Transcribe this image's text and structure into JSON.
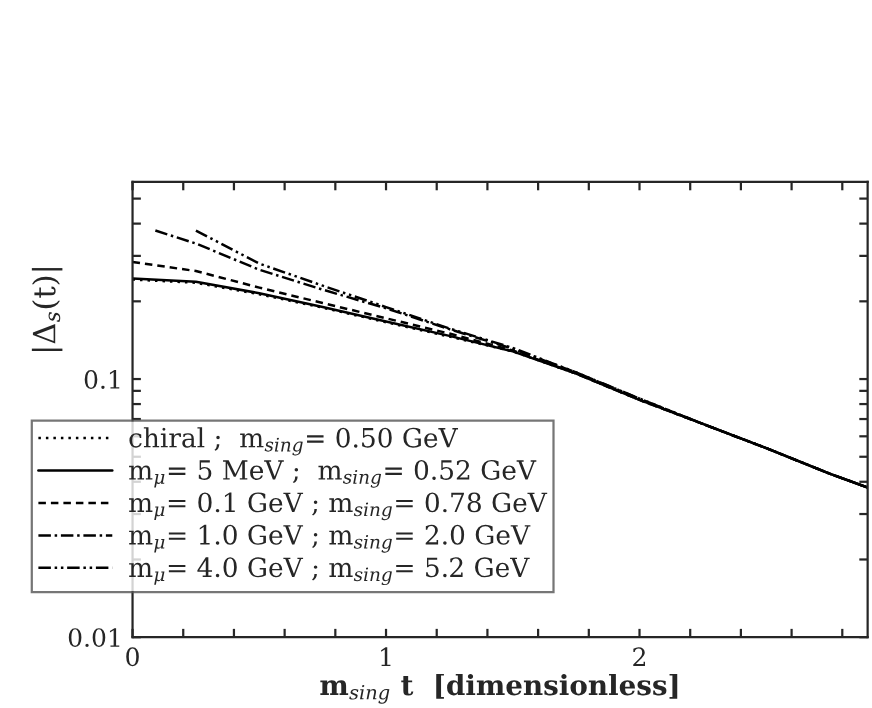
{
  "chart_data": {
    "type": "line",
    "xlabel": "m$_{sing}$ t  [dimensionless]",
    "ylabel": "|Δ$_{s}$(t)|",
    "log": "y",
    "xlim": [
      0,
      2.9
    ],
    "xticks": [
      0,
      {
        "value": 0.2,
        "label": null
      },
      {
        "value": 0.4,
        "label": null
      },
      {
        "value": 0.6,
        "label": null
      },
      {
        "value": 0.8,
        "label": null
      },
      1,
      {
        "value": 1.2,
        "label": null
      },
      {
        "value": 1.4,
        "label": null
      },
      {
        "value": 1.6,
        "label": null
      },
      {
        "value": 1.8,
        "label": null
      },
      2,
      {
        "value": 2.2,
        "label": null
      },
      {
        "value": 2.4,
        "label": null
      },
      {
        "value": 2.6,
        "label": null
      },
      {
        "value": 2.8,
        "label": null
      }
    ],
    "ylim": [
      0.01,
      0.58
    ],
    "yticks": [
      0.01,
      {
        "value": 0.02,
        "label": null
      },
      {
        "value": 0.03,
        "label": null
      },
      {
        "value": 0.04,
        "label": null
      },
      {
        "value": 0.05,
        "label": null
      },
      {
        "value": 0.06,
        "label": null
      },
      {
        "value": 0.07,
        "label": null
      },
      {
        "value": 0.08,
        "label": null
      },
      {
        "value": 0.09,
        "label": null
      },
      0.1,
      {
        "value": 0.2,
        "label": null
      },
      {
        "value": 0.3,
        "label": null
      },
      {
        "value": 0.4,
        "label": null
      },
      {
        "value": 0.5,
        "label": null
      }
    ],
    "grid": false,
    "legend": "bottom left",
    "series": [
      {
        "name": "chiral ;  m$_{sing}$= 0.50 GeV",
        "color": "#000000",
        "line_style": "dotted",
        "x": [
          0,
          0.25,
          0.5,
          0.75,
          1,
          1.25,
          1.5,
          1.75,
          2,
          2.25,
          2.5,
          2.75,
          2.9
        ],
        "values": [
          0.243,
          0.236,
          0.213,
          0.189,
          0.166,
          0.146,
          0.128,
          0.105,
          0.083,
          0.067,
          0.054,
          0.043,
          0.038
        ]
      },
      {
        "name": "m$_{μ}$= 5 MeV ;  m$_{sing}$= 0.52 GeV",
        "color": "#000000",
        "line_style": "solid",
        "x": [
          0,
          0.25,
          0.5,
          0.75,
          1,
          1.25,
          1.5,
          1.75,
          2,
          2.25,
          2.5,
          2.75,
          2.9
        ],
        "values": [
          0.245,
          0.238,
          0.215,
          0.19,
          0.167,
          0.147,
          0.128,
          0.105,
          0.083,
          0.067,
          0.054,
          0.043,
          0.038
        ]
      },
      {
        "name": "m$_{μ}$= 0.1 GeV ; m$_{sing}$= 0.78 GeV",
        "color": "#000000",
        "line_style": "dashed",
        "x": [
          0,
          0.25,
          0.5,
          0.75,
          1,
          1.25,
          1.5,
          1.75,
          2,
          2.25,
          2.5,
          2.75,
          2.9
        ],
        "values": [
          0.284,
          0.262,
          0.226,
          0.197,
          0.172,
          0.15,
          0.129,
          0.105,
          0.083,
          0.067,
          0.054,
          0.043,
          0.038
        ]
      },
      {
        "name": "m$_{μ}$= 1.0 GeV ; m$_{sing}$= 2.0 GeV",
        "color": "#000000",
        "line_style": "dashdot",
        "x": [
          0.09,
          0.25,
          0.5,
          0.75,
          1,
          1.25,
          1.5,
          1.75,
          2,
          2.25,
          2.5,
          2.75,
          2.9
        ],
        "values": [
          0.376,
          0.335,
          0.265,
          0.222,
          0.188,
          0.156,
          0.131,
          0.106,
          0.084,
          0.067,
          0.054,
          0.043,
          0.038
        ]
      },
      {
        "name": "m$_{μ}$= 4.0 GeV ; m$_{sing}$= 5.2 GeV",
        "color": "#000000",
        "line_style": "dashdotdot",
        "x": [
          0.25,
          0.5,
          0.75,
          1,
          1.25,
          1.5,
          1.75,
          2,
          2.25,
          2.5,
          2.75,
          2.9
        ],
        "values": [
          0.376,
          0.28,
          0.23,
          0.19,
          0.157,
          0.132,
          0.106,
          0.084,
          0.067,
          0.054,
          0.043,
          0.038
        ]
      }
    ]
  }
}
